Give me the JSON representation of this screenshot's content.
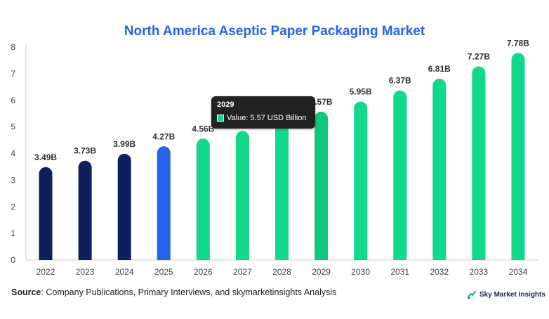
{
  "chart_data": {
    "type": "bar",
    "title": "North America Aseptic Paper Packaging Market",
    "categories": [
      "2022",
      "2023",
      "2024",
      "2025",
      "2026",
      "2027",
      "2028",
      "2029",
      "2030",
      "2031",
      "2032",
      "2033",
      "2034"
    ],
    "values": [
      3.49,
      3.73,
      3.99,
      4.27,
      4.56,
      4.85,
      5.21,
      5.57,
      5.95,
      6.37,
      6.81,
      7.27,
      7.78
    ],
    "data_labels": [
      "3.49B",
      "3.73B",
      "3.99B",
      "4.27B",
      "4.56B",
      "4.85B",
      "5.21B",
      "5.57B",
      "5.95B",
      "6.37B",
      "6.81B",
      "7.27B",
      "7.78B"
    ],
    "ylim": [
      0,
      8
    ],
    "yticks": [
      0,
      1,
      2,
      3,
      4,
      5,
      6,
      7,
      8
    ],
    "xlabel": "",
    "ylabel": "",
    "grid": false,
    "colors": {
      "historical": "#0d1f5c",
      "base_year": "#2563eb",
      "forecast": "#10d98a",
      "forecast_hover": "#0cc77d"
    },
    "bar_color_groups": [
      "historical",
      "historical",
      "historical",
      "base_year",
      "forecast",
      "forecast",
      "forecast",
      "forecast_hover",
      "forecast",
      "forecast",
      "forecast",
      "forecast",
      "forecast"
    ]
  },
  "tooltip": {
    "title": "2029",
    "text": "Value: 5.57 USD Billion",
    "swatch_color": "#10d98a"
  },
  "footer": {
    "source_label": "Source",
    "source_text": ": Company Publications, Primary Interviews, and skymarketinsights Analysis",
    "brand_text": "Sky Market Insights",
    "brand_icon": "sky-market-insights-logo-icon"
  }
}
